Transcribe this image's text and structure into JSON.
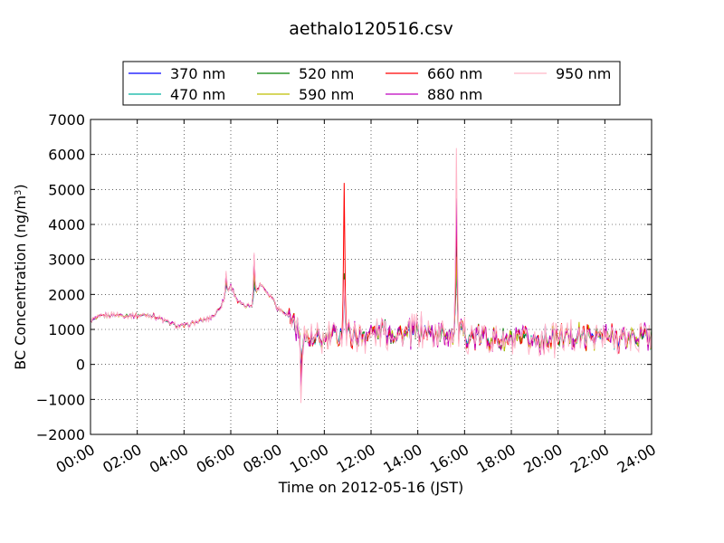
{
  "chart_data": {
    "type": "line",
    "title": "aethalo120516.csv",
    "xlabel": "Time on 2012-05-16 (JST)",
    "ylabel_main": "BC Concentration (ng/m",
    "ylabel_sup": "3",
    "ylabel_close": ")",
    "xlim_hours": [
      0,
      24
    ],
    "ylim": [
      -2000,
      7000
    ],
    "x_ticks": [
      "00:00",
      "02:00",
      "04:00",
      "06:00",
      "08:00",
      "10:00",
      "12:00",
      "14:00",
      "16:00",
      "18:00",
      "20:00",
      "22:00",
      "24:00"
    ],
    "y_ticks": [
      "−2000",
      "−1000",
      "0",
      "1000",
      "2000",
      "3000",
      "4000",
      "5000",
      "6000",
      "7000"
    ],
    "grid": true,
    "legend_position": "top",
    "series": [
      {
        "name": "370 nm",
        "color": "#0000ff",
        "noise": 0.75,
        "phase": 0
      },
      {
        "name": "470 nm",
        "color": "#00b2a0",
        "noise": 0.85,
        "phase": 1
      },
      {
        "name": "520 nm",
        "color": "#008000",
        "noise": 0.95,
        "phase": 2
      },
      {
        "name": "590 nm",
        "color": "#bfbf00",
        "noise": 1.0,
        "phase": 3
      },
      {
        "name": "660 nm",
        "color": "#ff0000",
        "noise": 1.05,
        "phase": 4
      },
      {
        "name": "880 nm",
        "color": "#bf00bf",
        "noise": 1.15,
        "phase": 5
      },
      {
        "name": "950 nm",
        "color": "#ffb6c8",
        "noise": 1.35,
        "phase": 6
      }
    ],
    "baseline": {
      "x_hours": [
        0,
        0.5,
        1,
        1.5,
        2,
        2.5,
        3,
        3.3,
        3.7,
        4,
        4.5,
        5,
        5.3,
        5.6,
        5.8,
        6.0,
        6.3,
        6.6,
        6.9,
        7.1,
        7.3,
        7.5,
        7.8,
        8.0,
        8.3,
        8.6,
        8.9,
        9.2,
        9.5,
        10,
        10.5,
        11,
        11.5,
        12,
        12.5,
        13,
        13.5,
        14,
        14.5,
        15,
        15.5,
        16,
        16.5,
        17,
        17.5,
        18,
        18.5,
        19,
        19.5,
        20,
        20.5,
        21,
        21.5,
        22,
        22.5,
        23,
        23.5,
        24
      ],
      "values": [
        1250,
        1380,
        1420,
        1400,
        1400,
        1420,
        1300,
        1200,
        1100,
        1100,
        1200,
        1300,
        1400,
        1700,
        2000,
        2250,
        1800,
        1650,
        1700,
        2100,
        2300,
        2100,
        1900,
        1600,
        1500,
        1300,
        1000,
        800,
        650,
        700,
        850,
        900,
        800,
        900,
        950,
        900,
        850,
        950,
        900,
        850,
        950,
        850,
        750,
        800,
        700,
        650,
        650,
        700,
        750,
        750,
        800,
        800,
        800,
        800,
        750,
        750,
        800,
        750
      ]
    },
    "spikes": [
      {
        "x_hour": 10.85,
        "values": [
          2400,
          2200,
          2600,
          2500,
          5100,
          2500,
          2300
        ]
      },
      {
        "x_hour": 15.65,
        "values": [
          3000,
          2800,
          3500,
          3300,
          4350,
          5000,
          6500
        ]
      },
      {
        "x_hour": 7.0,
        "values": [
          2200,
          2300,
          2500,
          2600,
          2800,
          3100,
          3150
        ]
      },
      {
        "x_hour": 5.8,
        "values": [
          2300,
          2350,
          2400,
          2450,
          2500,
          2600,
          2650
        ]
      },
      {
        "x_hour": 9.0,
        "values": [
          -300,
          -400,
          -450,
          -500,
          -550,
          -700,
          -1150
        ]
      }
    ]
  }
}
